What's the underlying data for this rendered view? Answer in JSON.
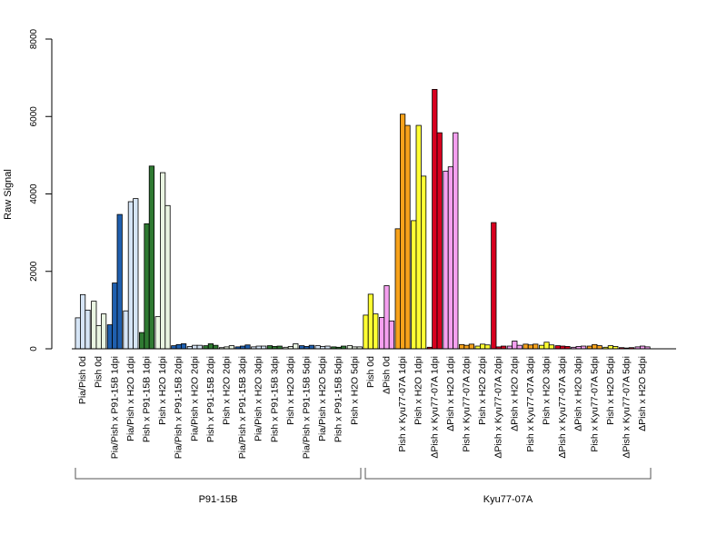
{
  "chart_data": {
    "type": "bar",
    "ylabel": "Raw Signal",
    "ylim": [
      0,
      8000
    ],
    "yticks": [
      0,
      2000,
      4000,
      6000,
      8000
    ],
    "grid": false,
    "legend": "none",
    "categories": [
      "Pia/Pish 0d",
      "Pish 0d",
      "Pia/Pish x P91-15B 1dpi",
      "Pia/Pish x H2O 1dpi",
      "Pish x P91-15B 1dpi",
      "Pish x H2O 1dpi",
      "Pia/Pish x P91-15B 2dpi",
      "Pia/Pish x H2O 2dpi",
      "Pish x P91-15B 2dpi",
      "Pish x H2O 2dpi",
      "Pia/Pish x P91-15B 3dpi",
      "Pia/Pish x H2O 3dpi",
      "Pish x P91-15B 3dpi",
      "Pish x H2O 3dpi",
      "Pia/Pish x P91-15B 5dpi",
      "Pia/Pish x H2O 5dpi",
      "Pish x P91-15B 5dpi",
      "Pish x H2O 5dpi",
      "Pish 0d",
      "ΔPish 0d",
      "Pish x Kyu77-07A 1dpi",
      "Pish x H2O 1dpi",
      "ΔPish x Kyu77-07A 1dpi",
      "ΔPish x H2O 1dpi",
      "Pish x Kyu77-07A 2dpi",
      "Pish x H2O 2dpi",
      "ΔPish x Kyu77-07A 2dpi",
      "ΔPish x H2O 2dpi",
      "Pish x Kyu77-07A 3dpi",
      "Pish x H2O 3dpi",
      "ΔPish x Kyu77-07A 3dpi",
      "ΔPish x H2O 3dpi",
      "Pish x Kyu77-07A 5dpi",
      "Pish x H2O 5dpi",
      "ΔPish x Kyu77-07A 5dpi",
      "ΔPish x H2O 5dpi"
    ],
    "bar_colors": [
      "#d6e5f6",
      "#eaf5e2",
      "#1f5fae",
      "#d6e5f6",
      "#2f7a32",
      "#eaf5e2",
      "#1f5fae",
      "#d6e5f6",
      "#2f7a32",
      "#eaf5e2",
      "#1f5fae",
      "#d6e5f6",
      "#2f7a32",
      "#eaf5e2",
      "#1f5fae",
      "#d6e5f6",
      "#2f7a32",
      "#eaf5e2",
      "#ffff33",
      "#f5a0f0",
      "#f7a21b",
      "#ffff33",
      "#d7001f",
      "#f5a0f0",
      "#f7a21b",
      "#ffff33",
      "#d7001f",
      "#f5a0f0",
      "#f7a21b",
      "#ffff33",
      "#d7001f",
      "#f5a0f0",
      "#f7a21b",
      "#ffff33",
      "#d7001f",
      "#f5a0f0"
    ],
    "replicates": [
      [
        800,
        1400,
        1000
      ],
      [
        1230,
        600,
        900
      ],
      [
        620,
        1700,
        3470
      ],
      [
        980,
        3800,
        3880
      ],
      [
        420,
        3230,
        4720
      ],
      [
        830,
        4550,
        3700
      ],
      [
        80,
        110,
        130
      ],
      [
        60,
        90,
        90
      ],
      [
        80,
        130,
        90
      ],
      [
        30,
        50,
        80
      ],
      [
        50,
        70,
        100
      ],
      [
        50,
        70,
        70
      ],
      [
        80,
        60,
        70
      ],
      [
        40,
        60,
        130
      ],
      [
        80,
        60,
        90
      ],
      [
        80,
        60,
        70
      ],
      [
        50,
        40,
        70
      ],
      [
        80,
        50,
        50
      ],
      [
        870,
        1410,
        900
      ],
      [
        810,
        1630,
        720
      ],
      [
        3100,
        6060,
        5770
      ],
      [
        3310,
        5770,
        4460
      ],
      [
        40,
        6700,
        5580
      ],
      [
        4590,
        4700,
        5580
      ],
      [
        110,
        90,
        120
      ],
      [
        70,
        120,
        100
      ],
      [
        3260,
        50,
        70
      ],
      [
        70,
        200,
        90
      ],
      [
        120,
        100,
        120
      ],
      [
        90,
        170,
        100
      ],
      [
        80,
        70,
        60
      ],
      [
        40,
        60,
        70
      ],
      [
        70,
        110,
        80
      ],
      [
        40,
        80,
        60
      ],
      [
        30,
        20,
        30
      ],
      [
        50,
        70,
        50
      ]
    ],
    "groups": [
      {
        "label": "P91-15B",
        "from": 0,
        "to": 17
      },
      {
        "label": "Kyu77-07A",
        "from": 18,
        "to": 35
      }
    ]
  }
}
